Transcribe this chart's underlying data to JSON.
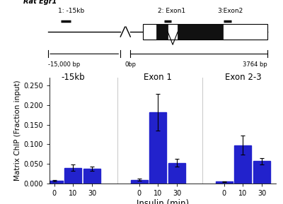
{
  "bar_color": "#2222CC",
  "bar_values": {
    "neg15kb": [
      0.008,
      0.04,
      0.038
    ],
    "exon1": [
      0.01,
      0.182,
      0.053
    ],
    "exon2": [
      0.005,
      0.098,
      0.057
    ]
  },
  "bar_errors": {
    "neg15kb": [
      0.002,
      0.008,
      0.006
    ],
    "exon1": [
      0.002,
      0.047,
      0.01
    ],
    "exon2": [
      0.001,
      0.025,
      0.008
    ]
  },
  "group_labels": [
    "-15kb",
    "Exon 1",
    "Exon 2-3"
  ],
  "x_tick_labels": [
    "0",
    "10",
    "30"
  ],
  "ylabel": "Matrix ChIP (Fraction input)",
  "xlabel": "Insulin (min)",
  "ylim": [
    0,
    0.27
  ],
  "yticks": [
    0.0,
    0.05,
    0.1,
    0.15,
    0.2,
    0.25
  ],
  "ytick_labels": [
    "0.000",
    "0.050",
    "0.100",
    "0.150",
    "0.200",
    "0.250"
  ],
  "schematic_title": "Rat Egr1",
  "region_labels": [
    "1: -15kb",
    "2: Exon1",
    "3:Exon2"
  ],
  "bp_labels": [
    "-15,000 bp",
    "0bp",
    "3764 bp"
  ]
}
